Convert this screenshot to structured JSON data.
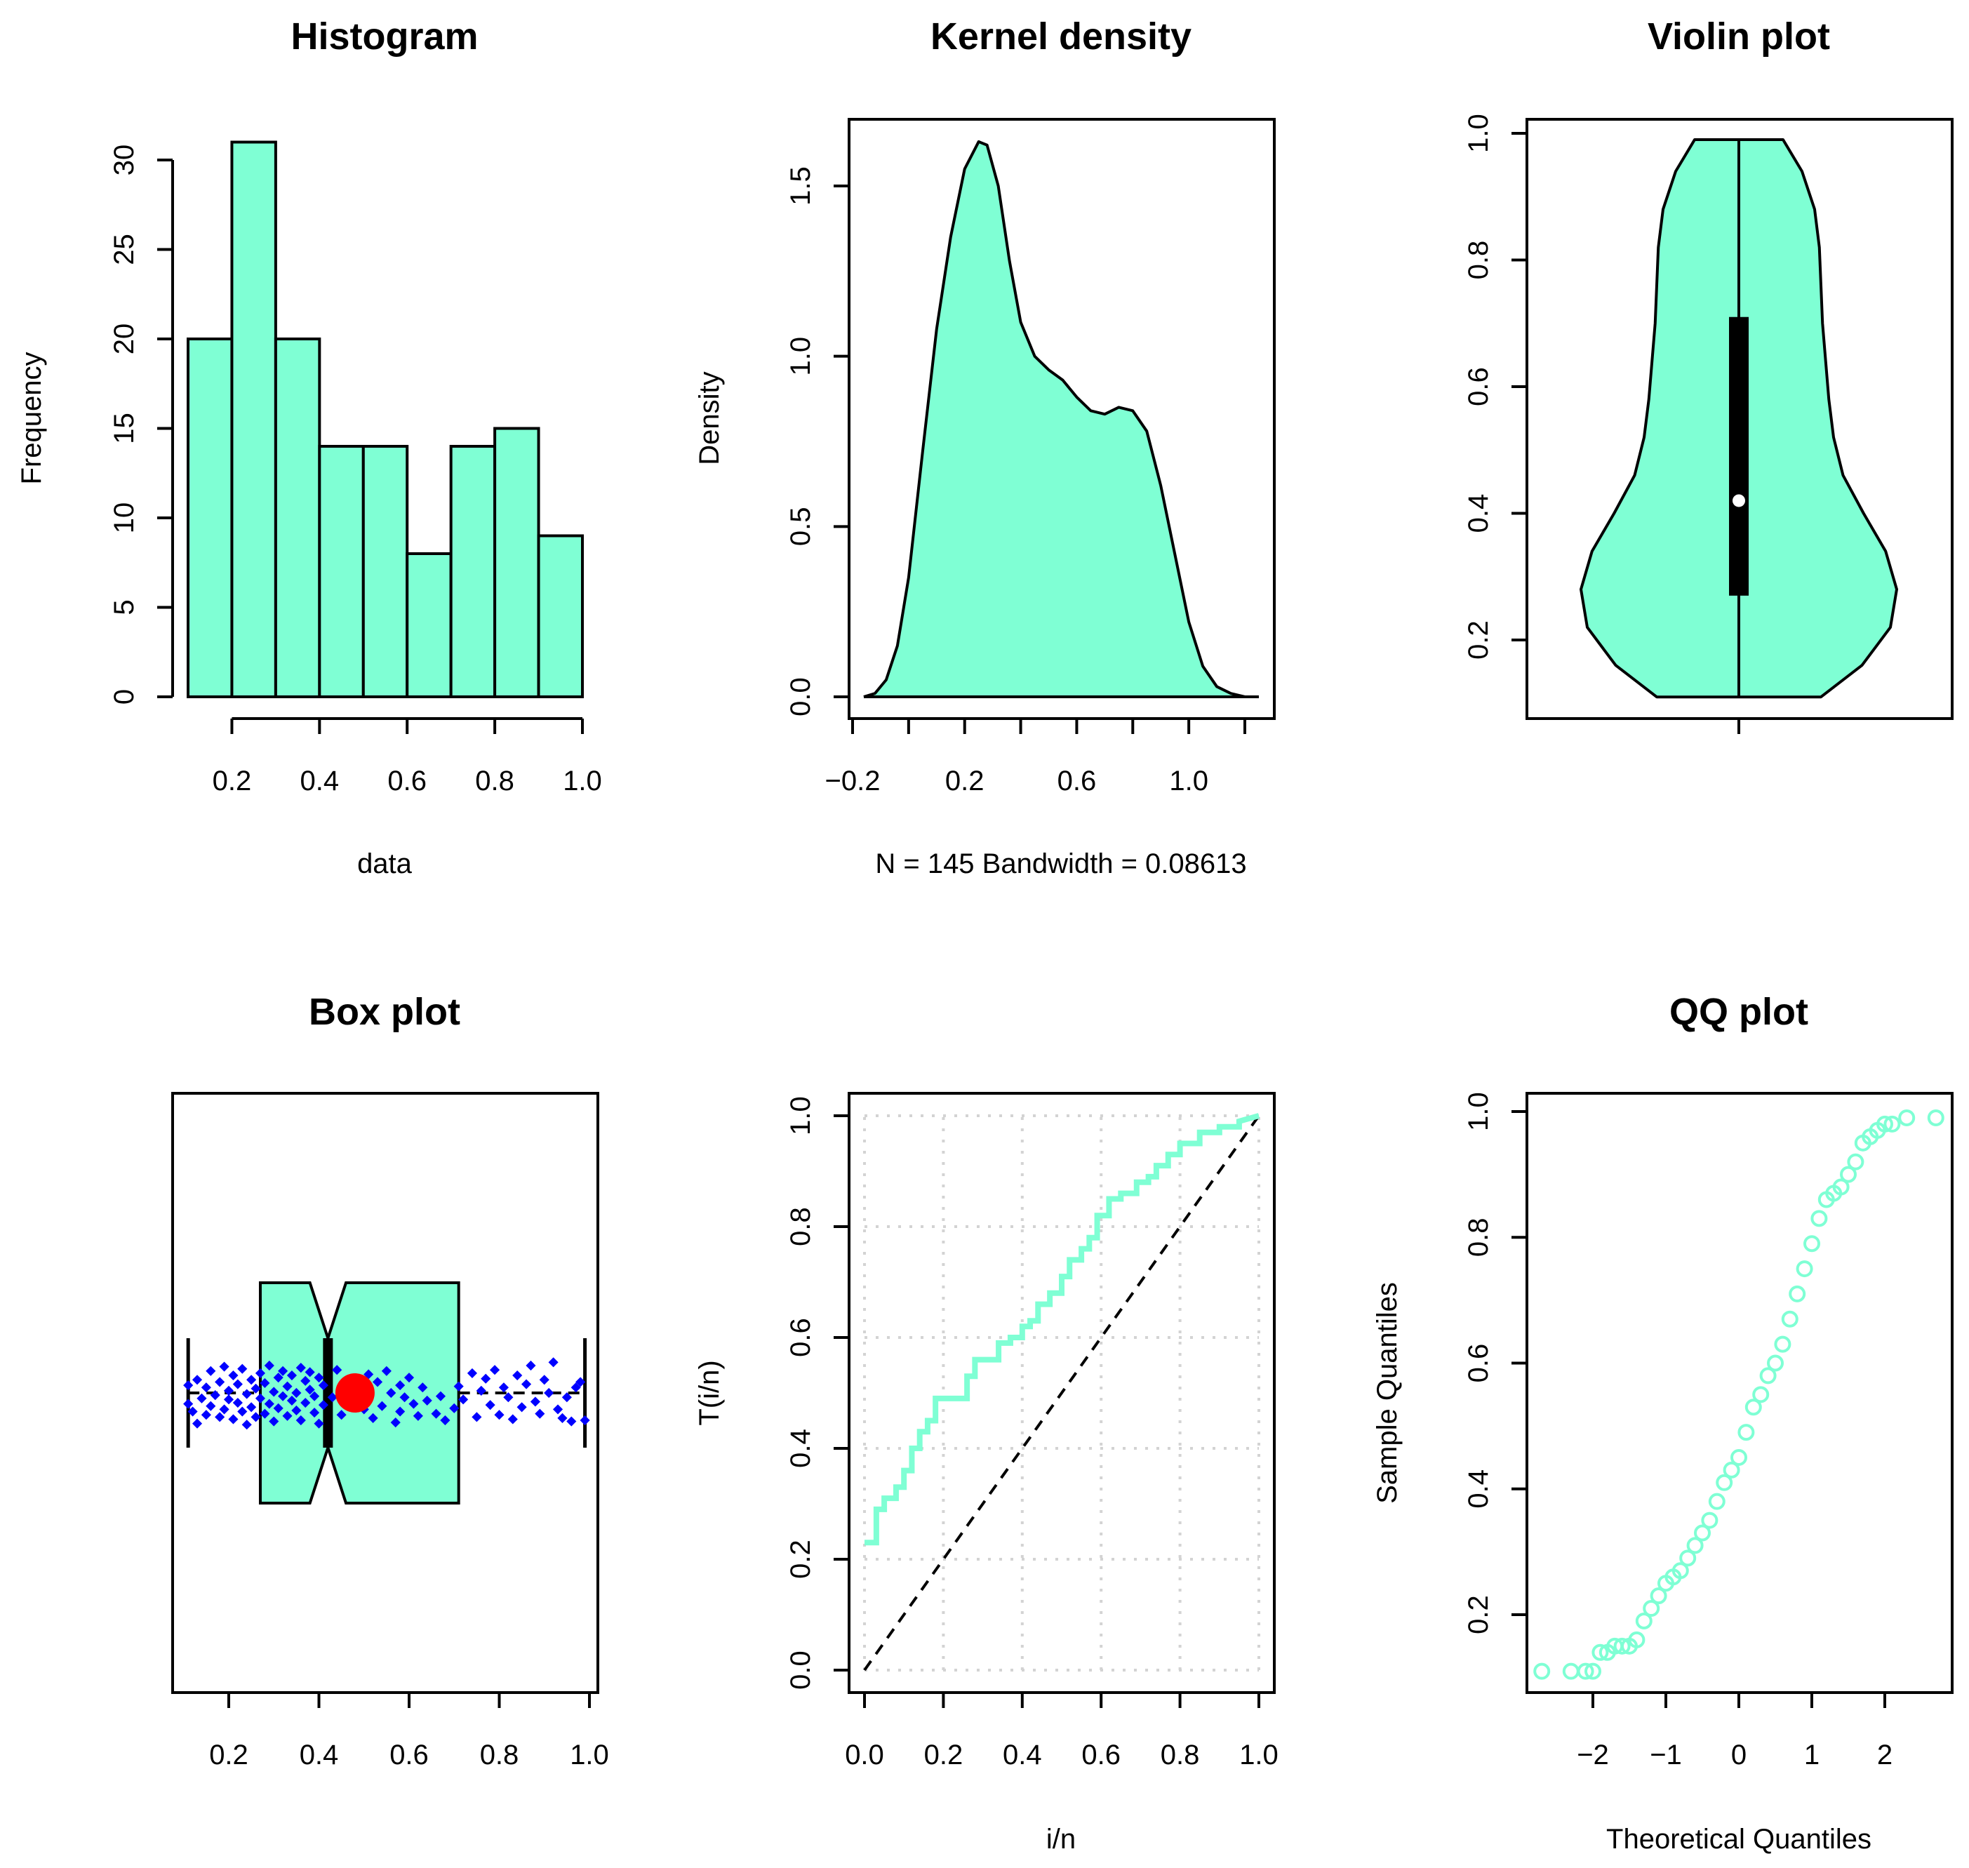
{
  "colors": {
    "fill": "#7fffd4",
    "stroke": "#000000",
    "jitter": "#0000ff",
    "mean_marker": "#ff0000",
    "grid": "#d3d3d3"
  },
  "chart_data": [
    {
      "type": "bar",
      "title": "Histogram",
      "xlabel": "data",
      "ylabel": "Frequency",
      "bin_edges": [
        0.1,
        0.2,
        0.3,
        0.4,
        0.5,
        0.6,
        0.7,
        0.8,
        0.9,
        1.0
      ],
      "values": [
        20,
        31,
        20,
        14,
        14,
        8,
        14,
        15,
        9
      ],
      "xlim": [
        0.1,
        1.0
      ],
      "ylim": [
        0,
        31
      ],
      "xticks": [
        0.2,
        0.4,
        0.6,
        0.8,
        1.0
      ],
      "xtick_labels": [
        "0.2",
        "0.4",
        "0.6",
        "0.8",
        "1.0"
      ],
      "yticks": [
        0,
        5,
        10,
        15,
        20,
        25,
        30
      ],
      "ytick_labels": [
        "0",
        "5",
        "10",
        "15",
        "20",
        "25",
        "30"
      ]
    },
    {
      "type": "area",
      "title": "Kernel density",
      "xlabel": "N = 145   Bandwidth = 0.08613",
      "ylabel": "Density",
      "x": [
        -0.16,
        -0.12,
        -0.08,
        -0.04,
        0.0,
        0.05,
        0.1,
        0.15,
        0.2,
        0.25,
        0.28,
        0.32,
        0.36,
        0.4,
        0.45,
        0.5,
        0.55,
        0.6,
        0.65,
        0.7,
        0.75,
        0.8,
        0.85,
        0.9,
        0.95,
        1.0,
        1.05,
        1.1,
        1.15,
        1.2,
        1.25
      ],
      "y": [
        0.0,
        0.01,
        0.05,
        0.15,
        0.35,
        0.72,
        1.08,
        1.35,
        1.55,
        1.63,
        1.62,
        1.5,
        1.28,
        1.1,
        1.0,
        0.96,
        0.93,
        0.88,
        0.84,
        0.83,
        0.85,
        0.84,
        0.78,
        0.62,
        0.42,
        0.22,
        0.09,
        0.03,
        0.01,
        0.0,
        0.0
      ],
      "xlim": [
        -0.2,
        1.26
      ],
      "ylim": [
        0,
        1.68
      ],
      "xticks": [
        -0.2,
        0.2,
        0.6,
        1.0
      ],
      "xtick_labels": [
        "−0.2",
        "0.2",
        "0.6",
        "1.0"
      ],
      "yticks": [
        0,
        0.5,
        1.0,
        1.5
      ],
      "ytick_labels": [
        "0.0",
        "0.5",
        "1.0",
        "1.5"
      ]
    },
    {
      "type": "violin",
      "title": "Violin plot",
      "ylim": [
        0.08,
        1.02
      ],
      "min": 0.11,
      "q1": 0.27,
      "median": 0.42,
      "q3": 0.71,
      "max": 0.99,
      "profile_y": [
        0.11,
        0.16,
        0.22,
        0.28,
        0.34,
        0.4,
        0.46,
        0.52,
        0.58,
        0.64,
        0.7,
        0.76,
        0.82,
        0.88,
        0.94,
        0.99
      ],
      "profile_w": [
        0.52,
        0.78,
        0.96,
        1.0,
        0.93,
        0.79,
        0.66,
        0.6,
        0.57,
        0.55,
        0.53,
        0.52,
        0.51,
        0.48,
        0.4,
        0.28
      ],
      "yticks": [
        0.2,
        0.4,
        0.6,
        0.8,
        1.0
      ],
      "ytick_labels": [
        "0.2",
        "0.4",
        "0.6",
        "0.8",
        "1.0"
      ]
    },
    {
      "type": "box",
      "title": "Box plot",
      "min": 0.11,
      "q1": 0.27,
      "median": 0.42,
      "q3": 0.71,
      "max": 0.99,
      "mean": 0.48,
      "notch": [
        0.38,
        0.46
      ],
      "xlim": [
        0.08,
        1.02
      ],
      "xticks": [
        0.2,
        0.4,
        0.6,
        0.8,
        1.0
      ],
      "xtick_labels": [
        "0.2",
        "0.4",
        "0.6",
        "0.8",
        "1.0"
      ],
      "points": [
        [
          0.11,
          0.57
        ],
        [
          0.11,
          0.4
        ],
        [
          0.12,
          0.33
        ],
        [
          0.13,
          0.62
        ],
        [
          0.13,
          0.22
        ],
        [
          0.14,
          0.45
        ],
        [
          0.15,
          0.3
        ],
        [
          0.15,
          0.55
        ],
        [
          0.16,
          0.38
        ],
        [
          0.16,
          0.7
        ],
        [
          0.17,
          0.48
        ],
        [
          0.18,
          0.28
        ],
        [
          0.18,
          0.6
        ],
        [
          0.19,
          0.35
        ],
        [
          0.19,
          0.74
        ],
        [
          0.2,
          0.44
        ],
        [
          0.2,
          0.52
        ],
        [
          0.21,
          0.26
        ],
        [
          0.21,
          0.66
        ],
        [
          0.22,
          0.41
        ],
        [
          0.22,
          0.58
        ],
        [
          0.23,
          0.33
        ],
        [
          0.23,
          0.72
        ],
        [
          0.24,
          0.49
        ],
        [
          0.24,
          0.21
        ],
        [
          0.25,
          0.62
        ],
        [
          0.25,
          0.37
        ],
        [
          0.26,
          0.54
        ],
        [
          0.26,
          0.28
        ],
        [
          0.27,
          0.68
        ],
        [
          0.27,
          0.45
        ],
        [
          0.28,
          0.31
        ],
        [
          0.28,
          0.59
        ],
        [
          0.29,
          0.4
        ],
        [
          0.29,
          0.75
        ],
        [
          0.3,
          0.24
        ],
        [
          0.3,
          0.51
        ],
        [
          0.31,
          0.64
        ],
        [
          0.31,
          0.36
        ],
        [
          0.32,
          0.47
        ],
        [
          0.32,
          0.7
        ],
        [
          0.33,
          0.29
        ],
        [
          0.33,
          0.56
        ],
        [
          0.34,
          0.43
        ],
        [
          0.34,
          0.66
        ],
        [
          0.35,
          0.34
        ],
        [
          0.35,
          0.5
        ],
        [
          0.36,
          0.73
        ],
        [
          0.36,
          0.25
        ],
        [
          0.37,
          0.61
        ],
        [
          0.37,
          0.41
        ],
        [
          0.38,
          0.53
        ],
        [
          0.38,
          0.69
        ],
        [
          0.39,
          0.32
        ],
        [
          0.39,
          0.47
        ],
        [
          0.4,
          0.64
        ],
        [
          0.4,
          0.22
        ],
        [
          0.41,
          0.57
        ],
        [
          0.41,
          0.39
        ],
        [
          0.43,
          0.46
        ],
        [
          0.44,
          0.71
        ],
        [
          0.45,
          0.3
        ],
        [
          0.45,
          0.55
        ],
        [
          0.46,
          0.42
        ],
        [
          0.47,
          0.63
        ],
        [
          0.48,
          0.48
        ],
        [
          0.49,
          0.52
        ],
        [
          0.5,
          0.35
        ],
        [
          0.5,
          0.58
        ],
        [
          0.51,
          0.44
        ],
        [
          0.51,
          0.67
        ],
        [
          0.52,
          0.27
        ],
        [
          0.53,
          0.6
        ],
        [
          0.54,
          0.38
        ],
        [
          0.55,
          0.7
        ],
        [
          0.56,
          0.5
        ],
        [
          0.57,
          0.23
        ],
        [
          0.58,
          0.57
        ],
        [
          0.58,
          0.33
        ],
        [
          0.59,
          0.46
        ],
        [
          0.6,
          0.64
        ],
        [
          0.61,
          0.4
        ],
        [
          0.62,
          0.29
        ],
        [
          0.63,
          0.55
        ],
        [
          0.64,
          0.43
        ],
        [
          0.66,
          0.31
        ],
        [
          0.67,
          0.47
        ],
        [
          0.68,
          0.25
        ],
        [
          0.7,
          0.36
        ],
        [
          0.71,
          0.56
        ],
        [
          0.72,
          0.44
        ],
        [
          0.74,
          0.68
        ],
        [
          0.75,
          0.28
        ],
        [
          0.76,
          0.52
        ],
        [
          0.77,
          0.63
        ],
        [
          0.78,
          0.39
        ],
        [
          0.79,
          0.71
        ],
        [
          0.8,
          0.3
        ],
        [
          0.81,
          0.55
        ],
        [
          0.82,
          0.46
        ],
        [
          0.83,
          0.26
        ],
        [
          0.84,
          0.66
        ],
        [
          0.85,
          0.37
        ],
        [
          0.86,
          0.58
        ],
        [
          0.87,
          0.75
        ],
        [
          0.88,
          0.42
        ],
        [
          0.89,
          0.31
        ],
        [
          0.9,
          0.62
        ],
        [
          0.91,
          0.5
        ],
        [
          0.92,
          0.78
        ],
        [
          0.93,
          0.35
        ],
        [
          0.94,
          0.27
        ],
        [
          0.95,
          0.46
        ],
        [
          0.96,
          0.24
        ],
        [
          0.97,
          0.55
        ],
        [
          0.98,
          0.6
        ],
        [
          0.99,
          0.25
        ]
      ]
    },
    {
      "type": "line",
      "title": "",
      "xlabel": "i/n",
      "ylabel": "T(i/n)",
      "xlim": [
        -0.01,
        1.01
      ],
      "ylim": [
        -0.01,
        1.01
      ],
      "x": [
        0.0,
        0.03,
        0.03,
        0.05,
        0.05,
        0.08,
        0.08,
        0.1,
        0.1,
        0.12,
        0.12,
        0.14,
        0.14,
        0.16,
        0.16,
        0.18,
        0.18,
        0.2,
        0.2,
        0.22,
        0.22,
        0.26,
        0.26,
        0.28,
        0.28,
        0.3,
        0.3,
        0.34,
        0.34,
        0.37,
        0.37,
        0.4,
        0.4,
        0.42,
        0.42,
        0.44,
        0.44,
        0.47,
        0.47,
        0.5,
        0.5,
        0.52,
        0.52,
        0.55,
        0.55,
        0.57,
        0.57,
        0.59,
        0.59,
        0.62,
        0.62,
        0.65,
        0.65,
        0.69,
        0.69,
        0.72,
        0.72,
        0.74,
        0.74,
        0.77,
        0.77,
        0.8,
        0.8,
        0.85,
        0.85,
        0.9,
        0.9,
        0.95,
        0.95,
        1.0
      ],
      "y": [
        0.23,
        0.23,
        0.29,
        0.29,
        0.31,
        0.31,
        0.33,
        0.33,
        0.36,
        0.36,
        0.4,
        0.4,
        0.43,
        0.43,
        0.45,
        0.45,
        0.49,
        0.49,
        0.49,
        0.49,
        0.49,
        0.49,
        0.53,
        0.53,
        0.56,
        0.56,
        0.56,
        0.56,
        0.59,
        0.59,
        0.6,
        0.6,
        0.62,
        0.62,
        0.63,
        0.63,
        0.66,
        0.66,
        0.68,
        0.68,
        0.71,
        0.71,
        0.74,
        0.74,
        0.76,
        0.76,
        0.78,
        0.78,
        0.82,
        0.82,
        0.85,
        0.85,
        0.86,
        0.86,
        0.88,
        0.88,
        0.89,
        0.89,
        0.91,
        0.91,
        0.93,
        0.93,
        0.95,
        0.95,
        0.97,
        0.97,
        0.98,
        0.98,
        0.99,
        1.0
      ],
      "reference": [
        [
          0,
          0
        ],
        [
          1,
          1
        ]
      ],
      "grid": true,
      "xticks": [
        0,
        0.2,
        0.4,
        0.6,
        0.8,
        1.0
      ],
      "xtick_labels": [
        "0.0",
        "0.2",
        "0.4",
        "0.6",
        "0.8",
        "1.0"
      ],
      "yticks": [
        0,
        0.2,
        0.4,
        0.6,
        0.8,
        1.0
      ],
      "ytick_labels": [
        "0.0",
        "0.2",
        "0.4",
        "0.6",
        "0.8",
        "1.0"
      ]
    },
    {
      "type": "scatter",
      "title": "QQ plot",
      "xlabel": "Theoretical Quantiles",
      "ylabel": "Sample Quantiles",
      "xlim": [
        -2.92,
        2.92
      ],
      "ylim": [
        0.08,
        1.02
      ],
      "x": [
        -2.7,
        -2.3,
        -2.1,
        -2.0,
        -1.9,
        -1.8,
        -1.7,
        -1.6,
        -1.5,
        -1.4,
        -1.3,
        -1.2,
        -1.1,
        -1.0,
        -0.9,
        -0.8,
        -0.7,
        -0.6,
        -0.5,
        -0.4,
        -0.3,
        -0.2,
        -0.1,
        0.0,
        0.1,
        0.2,
        0.3,
        0.4,
        0.5,
        0.6,
        0.7,
        0.8,
        0.9,
        1.0,
        1.1,
        1.2,
        1.3,
        1.4,
        1.5,
        1.6,
        1.7,
        1.8,
        1.9,
        2.0,
        2.1,
        2.3,
        2.7
      ],
      "y": [
        0.11,
        0.11,
        0.11,
        0.11,
        0.14,
        0.14,
        0.15,
        0.15,
        0.15,
        0.16,
        0.19,
        0.21,
        0.23,
        0.25,
        0.26,
        0.27,
        0.29,
        0.31,
        0.33,
        0.35,
        0.38,
        0.41,
        0.43,
        0.45,
        0.49,
        0.53,
        0.55,
        0.58,
        0.6,
        0.63,
        0.67,
        0.71,
        0.75,
        0.79,
        0.83,
        0.86,
        0.87,
        0.88,
        0.9,
        0.92,
        0.95,
        0.96,
        0.97,
        0.98,
        0.98,
        0.99,
        0.99
      ],
      "xticks": [
        -2,
        -1,
        0,
        1,
        2
      ],
      "xtick_labels": [
        "−2",
        "−1",
        "0",
        "1",
        "2"
      ],
      "yticks": [
        0.2,
        0.4,
        0.6,
        0.8,
        1.0
      ],
      "ytick_labels": [
        "0.2",
        "0.4",
        "0.6",
        "0.8",
        "1.0"
      ]
    }
  ]
}
